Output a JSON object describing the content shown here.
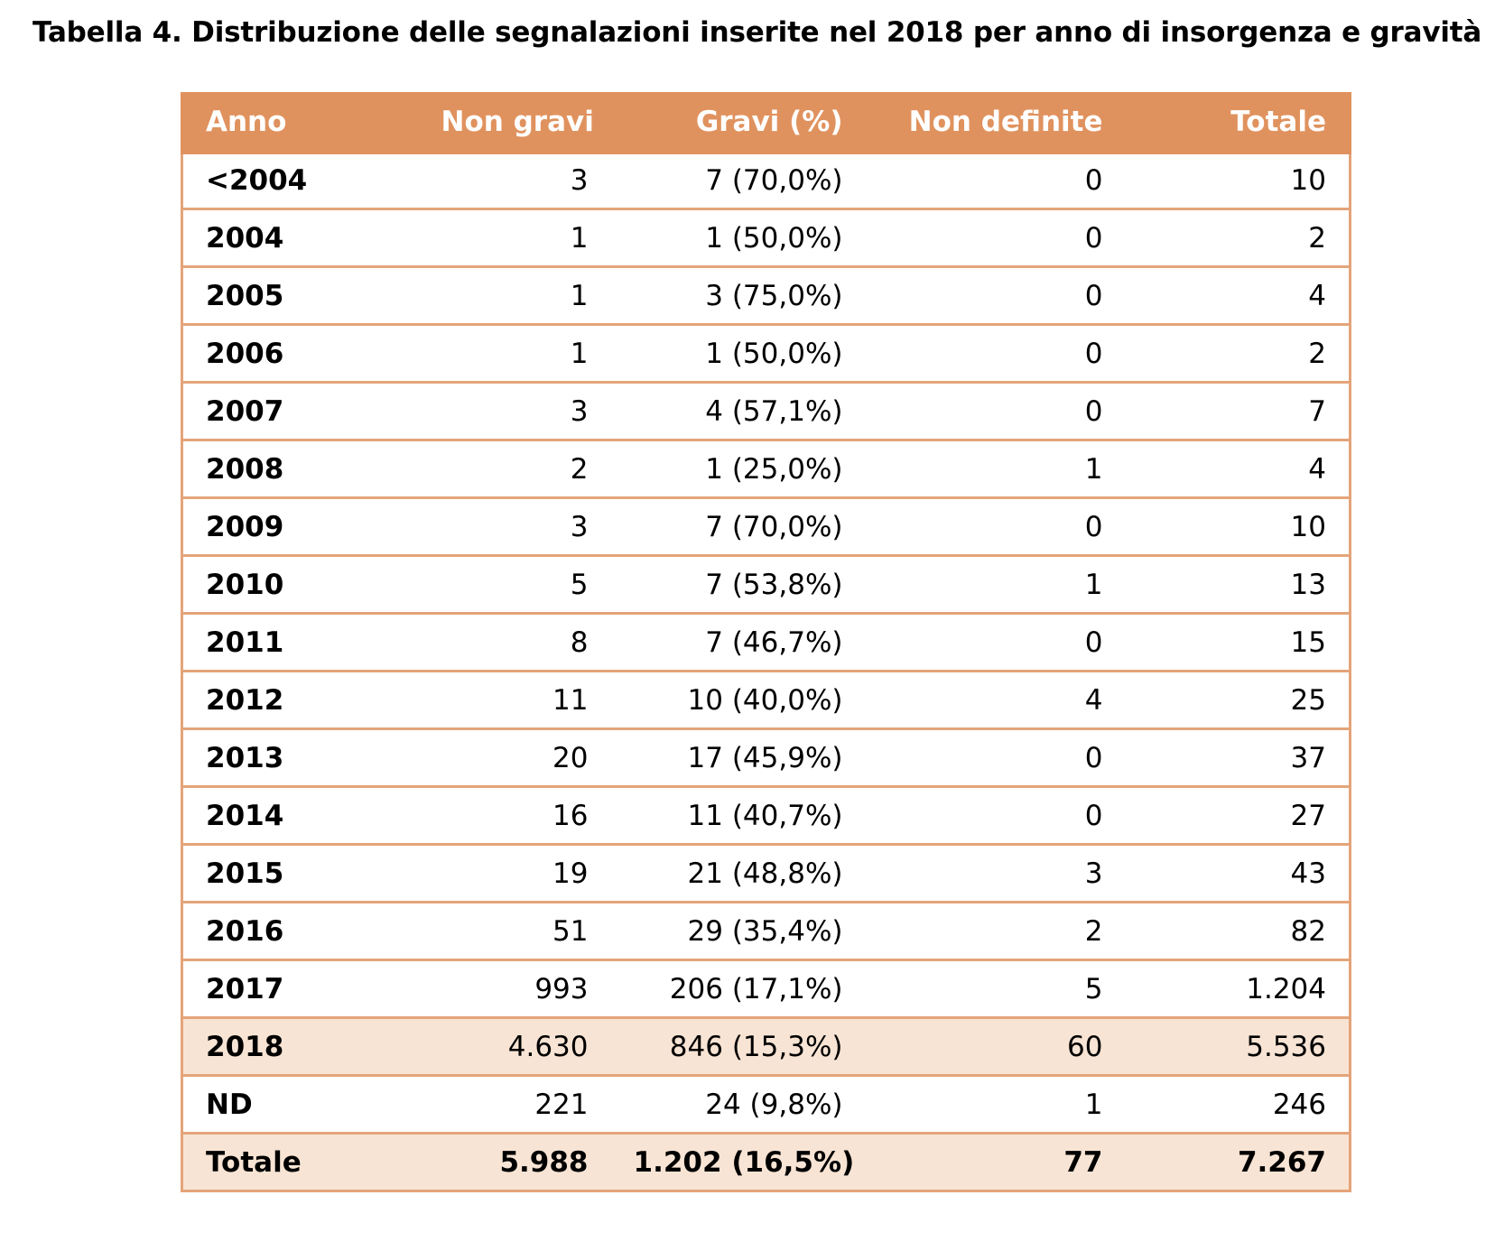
{
  "title": "Tabella 4. Distribuzione delle segnalazioni inserite nel 2018 per anno di insorgenza e gravità",
  "colors": {
    "header_bg": "#e0925e",
    "border": "#e4a47a",
    "highlight_bg": "#f8e4d4"
  },
  "table": {
    "headers": [
      "Anno",
      "Non gravi",
      "Gravi (%)",
      "Non definite",
      "Totale"
    ],
    "rows": [
      [
        "<2004",
        "3",
        "7 (70,0%)",
        "0",
        "10"
      ],
      [
        "2004",
        "1",
        "1 (50,0%)",
        "0",
        "2"
      ],
      [
        "2005",
        "1",
        "3 (75,0%)",
        "0",
        "4"
      ],
      [
        "2006",
        "1",
        "1 (50,0%)",
        "0",
        "2"
      ],
      [
        "2007",
        "3",
        "4 (57,1%)",
        "0",
        "7"
      ],
      [
        "2008",
        "2",
        "1 (25,0%)",
        "1",
        "4"
      ],
      [
        "2009",
        "3",
        "7 (70,0%)",
        "0",
        "10"
      ],
      [
        "2010",
        "5",
        "7 (53,8%)",
        "1",
        "13"
      ],
      [
        "2011",
        "8",
        "7 (46,7%)",
        "0",
        "15"
      ],
      [
        "2012",
        "11",
        "10 (40,0%)",
        "4",
        "25"
      ],
      [
        "2013",
        "20",
        "17 (45,9%)",
        "0",
        "37"
      ],
      [
        "2014",
        "16",
        "11 (40,7%)",
        "0",
        "27"
      ],
      [
        "2015",
        "19",
        "21 (48,8%)",
        "3",
        "43"
      ],
      [
        "2016",
        "51",
        "29 (35,4%)",
        "2",
        "82"
      ],
      [
        "2017",
        "993",
        "206 (17,1%)",
        "5",
        "1.204"
      ],
      [
        "2018",
        "4.630",
        "846 (15,3%)",
        "60",
        "5.536"
      ],
      [
        "ND",
        "221",
        "24 (9,8%)",
        "1",
        "246"
      ]
    ],
    "total": [
      "Totale",
      "5.988",
      "1.202 (16,5%)",
      "77",
      "7.267"
    ]
  }
}
